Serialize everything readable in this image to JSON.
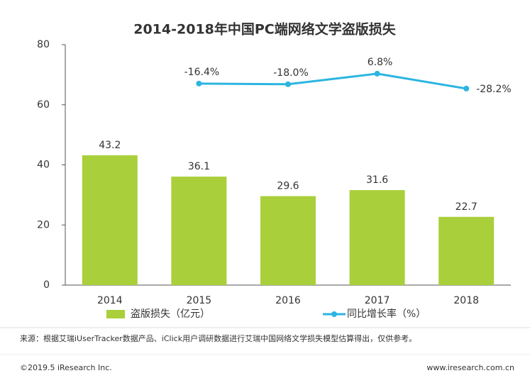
{
  "chart_data": {
    "type": "bar_line",
    "title": "2014-2018年中国PC端网络文学盗版损失",
    "categories": [
      "2014",
      "2015",
      "2016",
      "2017",
      "2018"
    ],
    "series": [
      {
        "name": "盗版损失（亿元）",
        "type": "bar",
        "color": "#a9cf3a",
        "values": [
          43.2,
          36.1,
          29.6,
          31.6,
          22.7
        ]
      },
      {
        "name": "同比增长率（%）",
        "type": "line",
        "axis": "y2",
        "color": "#2bb5e0",
        "values": [
          null,
          -16.4,
          -18.0,
          6.8,
          -28.2
        ],
        "value_labels": [
          null,
          "-16.4%",
          "-18.0%",
          "6.8%",
          "-28.2%"
        ]
      }
    ],
    "ylim": [
      0,
      80
    ],
    "yticks": [
      0,
      20,
      40,
      60,
      80
    ],
    "y2lim": [
      -490,
      75
    ],
    "legend": "bottom"
  },
  "source": "来源：根据艾瑞iUserTracker数据产品、iClick用户调研数据进行艾瑞中国网络文学损失模型估算得出，仅供参考。",
  "footer": {
    "left": "©2019.5 iResearch Inc.",
    "right": "www.iresearch.com.cn"
  }
}
